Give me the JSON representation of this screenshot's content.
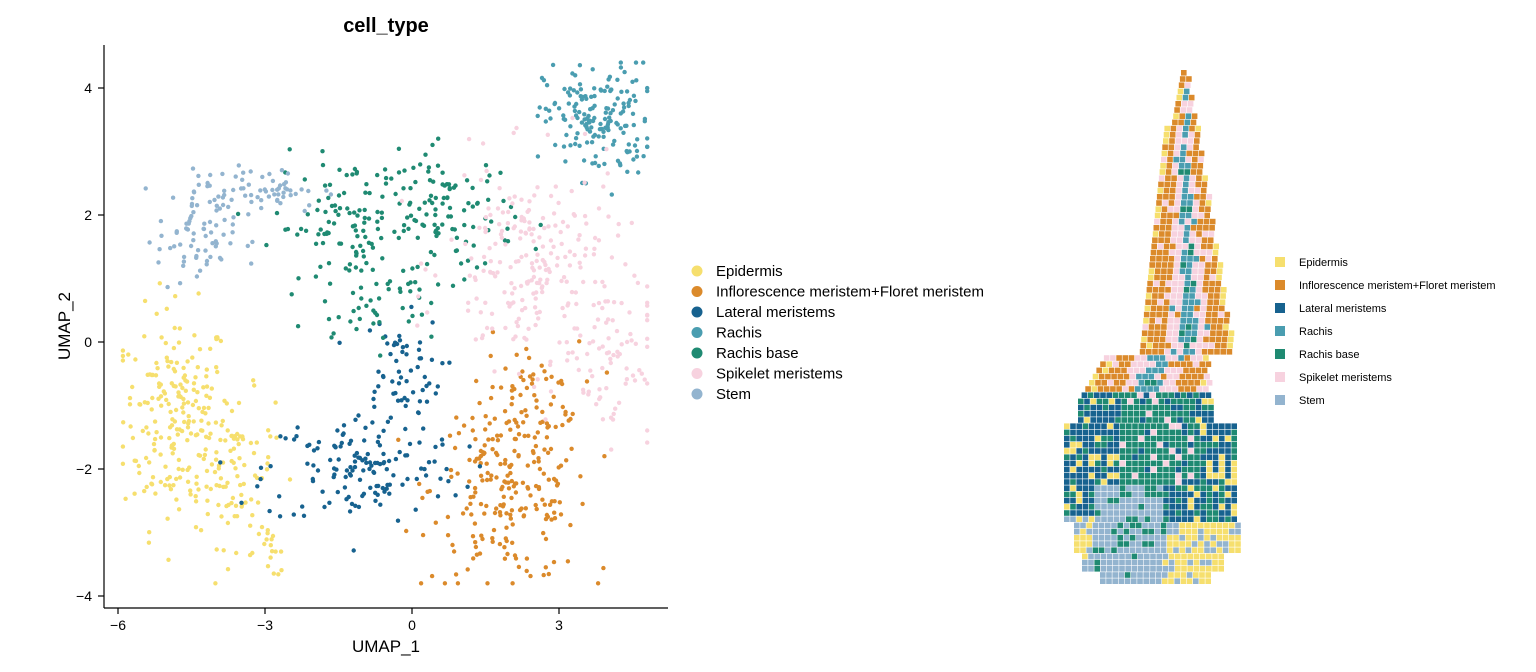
{
  "colors": {
    "Epidermis": "#f6df6e",
    "Inflorescence meristem+Floret meristem": "#db8a2b",
    "Lateral meristems": "#17628f",
    "Rachis": "#4a9db0",
    "Rachis base": "#1f8a72",
    "Spikelet meristems": "#f7d2df",
    "Stem": "#93b4cf"
  },
  "chart_data": [
    {
      "type": "scatter",
      "title": "cell_type",
      "xlabel": "UMAP_1",
      "ylabel": "UMAP_2",
      "xlim": [
        -6.4,
        5.2
      ],
      "ylim": [
        -4.2,
        4.7
      ],
      "xticks": [
        -6,
        -3,
        0,
        3
      ],
      "yticks": [
        -4,
        -2,
        0,
        2,
        4
      ],
      "grid": false,
      "legend_position": "right",
      "series": [
        {
          "name": "Epidermis",
          "clusters": [
            {
              "cx": -4.8,
              "cy": -1.2,
              "sx": 0.55,
              "sy": 0.85,
              "n": 210
            },
            {
              "cx": -3.6,
              "cy": -2.0,
              "sx": 0.4,
              "sy": 0.6,
              "n": 80
            },
            {
              "cx": -2.9,
              "cy": -3.3,
              "sx": 0.25,
              "sy": 0.2,
              "n": 18
            }
          ]
        },
        {
          "name": "Inflorescence meristem+Floret meristem",
          "clusters": [
            {
              "cx": 2.0,
              "cy": -2.3,
              "sx": 0.8,
              "sy": 0.75,
              "n": 230
            },
            {
              "cx": 2.4,
              "cy": -0.8,
              "sx": 0.5,
              "sy": 0.4,
              "n": 40
            }
          ]
        },
        {
          "name": "Lateral meristems",
          "clusters": [
            {
              "cx": -1.0,
              "cy": -2.0,
              "sx": 1.0,
              "sy": 0.45,
              "n": 140
            },
            {
              "cx": -0.3,
              "cy": -0.5,
              "sx": 0.45,
              "sy": 0.45,
              "n": 60
            }
          ]
        },
        {
          "name": "Rachis",
          "clusters": [
            {
              "cx": 3.8,
              "cy": 3.5,
              "sx": 0.55,
              "sy": 0.45,
              "n": 170
            }
          ]
        },
        {
          "name": "Rachis base",
          "clusters": [
            {
              "cx": -1.3,
              "cy": 1.8,
              "sx": 0.75,
              "sy": 0.55,
              "n": 110
            },
            {
              "cx": 0.7,
              "cy": 2.0,
              "sx": 0.7,
              "sy": 0.5,
              "n": 110
            },
            {
              "cx": -0.6,
              "cy": 0.5,
              "sx": 0.5,
              "sy": 0.3,
              "n": 30
            }
          ]
        },
        {
          "name": "Spikelet meristems",
          "clusters": [
            {
              "cx": 2.5,
              "cy": 1.2,
              "sx": 0.9,
              "sy": 0.8,
              "n": 230
            },
            {
              "cx": 4.0,
              "cy": -0.3,
              "sx": 0.5,
              "sy": 0.6,
              "n": 70
            }
          ]
        },
        {
          "name": "Stem",
          "clusters": [
            {
              "cx": -4.4,
              "cy": 1.7,
              "sx": 0.4,
              "sy": 0.45,
              "n": 80
            },
            {
              "cx": -3.0,
              "cy": 2.4,
              "sx": 0.6,
              "sy": 0.18,
              "n": 55
            }
          ]
        }
      ]
    },
    {
      "type": "heatmap",
      "legend_position": "right",
      "series": [
        {
          "name": "Epidermis"
        },
        {
          "name": "Inflorescence meristem+Floret meristem"
        },
        {
          "name": "Lateral meristems"
        },
        {
          "name": "Rachis"
        },
        {
          "name": "Rachis base"
        },
        {
          "name": "Spikelet meristems"
        },
        {
          "name": "Stem"
        }
      ]
    }
  ]
}
